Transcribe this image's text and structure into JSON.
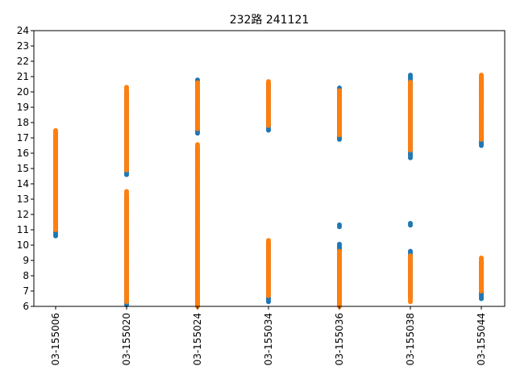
{
  "chart_data": {
    "type": "scatter",
    "title": "232路  241121",
    "xlabel": "",
    "ylabel": "",
    "categories": [
      "03-155006",
      "03-155020",
      "03-155024",
      "03-155034",
      "03-155036",
      "03-155038",
      "03-155044"
    ],
    "ylim": [
      6,
      24
    ],
    "yticks": [
      6,
      7,
      8,
      9,
      10,
      11,
      12,
      13,
      14,
      15,
      16,
      17,
      18,
      19,
      20,
      21,
      22,
      23,
      24
    ],
    "grid": false,
    "legend": "none",
    "series": [
      {
        "name": "series-blue",
        "color": "#1f77b4",
        "segments": [
          [
            [
              10.6,
              17.4
            ]
          ],
          [
            [
              6.1,
              13.2
            ],
            [
              14.6,
              20.1
            ]
          ],
          [
            [
              6.1,
              16.4
            ],
            [
              17.3,
              20.8
            ]
          ],
          [
            [
              6.3,
              10.2
            ],
            [
              17.5,
              20.5
            ]
          ],
          [
            [
              6.1,
              10.1
            ],
            [
              11.2,
              11.4
            ],
            [
              16.9,
              20.3
            ]
          ],
          [
            [
              6.6,
              9.6
            ],
            [
              11.3,
              11.5
            ],
            [
              15.7,
              21.1
            ]
          ],
          [
            [
              6.5,
              9.0
            ],
            [
              16.5,
              21.0
            ]
          ]
        ]
      },
      {
        "name": "series-orange",
        "color": "#ff7f0e",
        "segments": [
          [
            [
              11.0,
              17.5
            ]
          ],
          [
            [
              6.3,
              13.6
            ],
            [
              14.9,
              20.3
            ]
          ],
          [
            [
              6.0,
              16.6
            ],
            [
              17.6,
              20.6
            ]
          ],
          [
            [
              6.7,
              10.4
            ],
            [
              17.8,
              20.7
            ]
          ],
          [
            [
              6.0,
              9.7
            ],
            [
              17.2,
              20.1
            ]
          ],
          [
            [
              6.3,
              9.3
            ],
            [
              16.2,
              20.7
            ]
          ],
          [
            [
              7.0,
              9.2
            ],
            [
              16.9,
              21.2
            ]
          ]
        ]
      }
    ]
  }
}
